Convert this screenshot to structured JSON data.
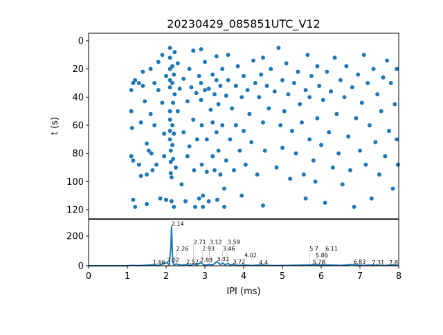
{
  "chart_data": [
    {
      "type": "scatter",
      "title": "20230429_085851UTC_V12",
      "xlabel": "",
      "ylabel": "t (s)",
      "xlim": [
        0,
        8
      ],
      "ylim": [
        126.4,
        -5.4
      ],
      "yticks": [
        "0",
        "20",
        "40",
        "60",
        "80",
        "100",
        "120"
      ],
      "ytick_values": [
        0,
        20,
        40,
        60,
        80,
        100,
        120
      ],
      "color": "#1f77b4",
      "points": [
        [
          1.1,
          35
        ],
        [
          1.15,
          30
        ],
        [
          1.2,
          28
        ],
        [
          1.1,
          50
        ],
        [
          1.12,
          62
        ],
        [
          1.1,
          82
        ],
        [
          1.15,
          85
        ],
        [
          1.15,
          113
        ],
        [
          1.2,
          118
        ],
        [
          1.3,
          88
        ],
        [
          1.35,
          96
        ],
        [
          1.35,
          58
        ],
        [
          1.3,
          30
        ],
        [
          1.4,
          22
        ],
        [
          1.4,
          32
        ],
        [
          1.45,
          43
        ],
        [
          1.5,
          73
        ],
        [
          1.5,
          95
        ],
        [
          1.5,
          116
        ],
        [
          1.55,
          78
        ],
        [
          1.6,
          20
        ],
        [
          1.6,
          52
        ],
        [
          1.62,
          80
        ],
        [
          1.65,
          92
        ],
        [
          1.7,
          30
        ],
        [
          1.7,
          60
        ],
        [
          1.75,
          88
        ],
        [
          1.8,
          15
        ],
        [
          1.8,
          35
        ],
        [
          1.85,
          112
        ],
        [
          1.9,
          10
        ],
        [
          1.9,
          44
        ],
        [
          1.95,
          66
        ],
        [
          1.95,
          82
        ],
        [
          2.0,
          25
        ],
        [
          2.0,
          113
        ],
        [
          2.1,
          5
        ],
        [
          2.1,
          12
        ],
        [
          2.1,
          20
        ],
        [
          2.1,
          28
        ],
        [
          2.1,
          33
        ],
        [
          2.1,
          50
        ],
        [
          2.1,
          56
        ],
        [
          2.1,
          64
        ],
        [
          2.1,
          70
        ],
        [
          2.12,
          78
        ],
        [
          2.12,
          86
        ],
        [
          2.12,
          94
        ],
        [
          2.14,
          97
        ],
        [
          2.14,
          114
        ],
        [
          2.16,
          18
        ],
        [
          2.16,
          30
        ],
        [
          2.16,
          60
        ],
        [
          2.16,
          74
        ],
        [
          2.18,
          44
        ],
        [
          2.18,
          84
        ],
        [
          2.2,
          24
        ],
        [
          2.2,
          66
        ],
        [
          2.2,
          118
        ],
        [
          2.22,
          8
        ],
        [
          2.22,
          38
        ],
        [
          2.25,
          90
        ],
        [
          2.3,
          16
        ],
        [
          2.3,
          50
        ],
        [
          2.35,
          34
        ],
        [
          2.4,
          102
        ],
        [
          2.45,
          27
        ],
        [
          2.45,
          65
        ],
        [
          2.5,
          114
        ],
        [
          2.55,
          43
        ],
        [
          2.55,
          82
        ],
        [
          2.6,
          20
        ],
        [
          2.6,
          75
        ],
        [
          2.65,
          33
        ],
        [
          2.7,
          7
        ],
        [
          2.7,
          56
        ],
        [
          2.72,
          92
        ],
        [
          2.75,
          118
        ],
        [
          2.78,
          37
        ],
        [
          2.8,
          70
        ],
        [
          2.85,
          25
        ],
        [
          2.85,
          112
        ],
        [
          2.9,
          6
        ],
        [
          2.9,
          30
        ],
        [
          2.9,
          42
        ],
        [
          2.92,
          60
        ],
        [
          2.92,
          88
        ],
        [
          2.95,
          110
        ],
        [
          2.95,
          118
        ],
        [
          3.0,
          15
        ],
        [
          3.0,
          35
        ],
        [
          3.05,
          70
        ],
        [
          3.05,
          93
        ],
        [
          3.1,
          34
        ],
        [
          3.1,
          114
        ],
        [
          3.15,
          49
        ],
        [
          3.2,
          24
        ],
        [
          3.2,
          58
        ],
        [
          3.2,
          82
        ],
        [
          3.25,
          38
        ],
        [
          3.25,
          92
        ],
        [
          3.3,
          11
        ],
        [
          3.3,
          28
        ],
        [
          3.3,
          65
        ],
        [
          3.32,
          113
        ],
        [
          3.35,
          45
        ],
        [
          3.35,
          78
        ],
        [
          3.4,
          32
        ],
        [
          3.4,
          95
        ],
        [
          3.45,
          20
        ],
        [
          3.45,
          60
        ],
        [
          3.5,
          105
        ],
        [
          3.5,
          118
        ],
        [
          3.55,
          39
        ],
        [
          3.55,
          85
        ],
        [
          3.6,
          10
        ],
        [
          3.6,
          28
        ],
        [
          3.65,
          70
        ],
        [
          3.7,
          48
        ],
        [
          3.75,
          92
        ],
        [
          3.8,
          32
        ],
        [
          3.8,
          60
        ],
        [
          3.85,
          18
        ],
        [
          3.9,
          78
        ],
        [
          3.95,
          40
        ],
        [
          3.95,
          110
        ],
        [
          4.0,
          25
        ],
        [
          4.0,
          64
        ],
        [
          4.05,
          88
        ],
        [
          4.1,
          35
        ],
        [
          4.15,
          52
        ],
        [
          4.2,
          72
        ],
        [
          4.25,
          14
        ],
        [
          4.3,
          30
        ],
        [
          4.35,
          95
        ],
        [
          4.4,
          40
        ],
        [
          4.45,
          24
        ],
        [
          4.5,
          12
        ],
        [
          4.5,
          58
        ],
        [
          4.5,
          117
        ],
        [
          4.55,
          78
        ],
        [
          4.6,
          32
        ],
        [
          4.65,
          48
        ],
        [
          4.7,
          20
        ],
        [
          4.8,
          36
        ],
        [
          4.85,
          90
        ],
        [
          4.9,
          5
        ],
        [
          4.95,
          60
        ],
        [
          5.0,
          28
        ],
        [
          5.0,
          76
        ],
        [
          5.05,
          50
        ],
        [
          5.1,
          16
        ],
        [
          5.15,
          38
        ],
        [
          5.2,
          98
        ],
        [
          5.25,
          64
        ],
        [
          5.3,
          30
        ],
        [
          5.35,
          80
        ],
        [
          5.4,
          22
        ],
        [
          5.45,
          45
        ],
        [
          5.5,
          58
        ],
        [
          5.55,
          95
        ],
        [
          5.6,
          35
        ],
        [
          5.6,
          112
        ],
        [
          5.65,
          10
        ],
        [
          5.7,
          40
        ],
        [
          5.7,
          70
        ],
        [
          5.75,
          25
        ],
        [
          5.8,
          85
        ],
        [
          5.85,
          100
        ],
        [
          5.9,
          18
        ],
        [
          5.9,
          55
        ],
        [
          5.95,
          32
        ],
        [
          6.0,
          74
        ],
        [
          6.05,
          42
        ],
        [
          6.1,
          115
        ],
        [
          6.15,
          22
        ],
        [
          6.2,
          65
        ],
        [
          6.25,
          36
        ],
        [
          6.3,
          90
        ],
        [
          6.35,
          12
        ],
        [
          6.4,
          52
        ],
        [
          6.45,
          80
        ],
        [
          6.5,
          28
        ],
        [
          6.55,
          102
        ],
        [
          6.6,
          40
        ],
        [
          6.65,
          18
        ],
        [
          6.7,
          68
        ],
        [
          6.75,
          92
        ],
        [
          6.8,
          33
        ],
        [
          6.85,
          118
        ],
        [
          6.9,
          55
        ],
        [
          6.95,
          24
        ],
        [
          7.0,
          78
        ],
        [
          7.05,
          44
        ],
        [
          7.1,
          10
        ],
        [
          7.15,
          88
        ],
        [
          7.2,
          30
        ],
        [
          7.25,
          60
        ],
        [
          7.3,
          112
        ],
        [
          7.35,
          20
        ],
        [
          7.4,
          72
        ],
        [
          7.45,
          38
        ],
        [
          7.5,
          95
        ],
        [
          7.55,
          50
        ],
        [
          7.6,
          26
        ],
        [
          7.65,
          82
        ],
        [
          7.7,
          14
        ],
        [
          7.75,
          64
        ],
        [
          7.8,
          30
        ],
        [
          7.85,
          105
        ],
        [
          7.9,
          45
        ],
        [
          7.95,
          20
        ],
        [
          7.95,
          70
        ],
        [
          7.98,
          88
        ]
      ]
    },
    {
      "type": "line",
      "xlabel": "IPI (ms)",
      "ylabel": "",
      "xlim": [
        0,
        8
      ],
      "ylim": [
        0,
        312
      ],
      "xticks": [
        "0",
        "1",
        "2",
        "3",
        "4",
        "5",
        "6",
        "7",
        "8"
      ],
      "xtick_values": [
        0,
        1,
        2,
        3,
        4,
        5,
        6,
        7,
        8
      ],
      "yticks": [
        "0",
        "200"
      ],
      "ytick_values": [
        0,
        200
      ],
      "color": "#1f77b4",
      "series": [
        [
          0,
          0
        ],
        [
          1,
          0
        ],
        [
          1.1,
          3
        ],
        [
          1.3,
          1
        ],
        [
          1.5,
          4
        ],
        [
          1.66,
          7
        ],
        [
          1.8,
          2
        ],
        [
          2.02,
          22
        ],
        [
          2.08,
          5
        ],
        [
          2.12,
          120
        ],
        [
          2.14,
          265
        ],
        [
          2.17,
          30
        ],
        [
          2.2,
          6
        ],
        [
          2.26,
          12
        ],
        [
          2.4,
          4
        ],
        [
          2.52,
          9
        ],
        [
          2.6,
          3
        ],
        [
          2.71,
          11
        ],
        [
          2.8,
          5
        ],
        [
          2.88,
          22
        ],
        [
          2.93,
          14
        ],
        [
          3.0,
          4
        ],
        [
          3.12,
          10
        ],
        [
          3.2,
          5
        ],
        [
          3.31,
          28
        ],
        [
          3.4,
          8
        ],
        [
          3.46,
          18
        ],
        [
          3.52,
          6
        ],
        [
          3.59,
          16
        ],
        [
          3.65,
          5
        ],
        [
          3.72,
          9
        ],
        [
          3.85,
          3
        ],
        [
          4.02,
          6
        ],
        [
          4.2,
          2
        ],
        [
          4.4,
          5
        ],
        [
          4.8,
          2
        ],
        [
          5.2,
          3
        ],
        [
          5.7,
          6
        ],
        [
          5.78,
          8
        ],
        [
          5.86,
          7
        ],
        [
          6.11,
          6
        ],
        [
          6.5,
          3
        ],
        [
          6.83,
          9
        ],
        [
          7.1,
          3
        ],
        [
          7.31,
          5
        ],
        [
          7.6,
          2
        ],
        [
          7.8,
          5
        ],
        [
          8,
          3
        ]
      ],
      "annotations": [
        {
          "x": 1.66,
          "y": 7,
          "text": "1.66"
        },
        {
          "x": 2.02,
          "y": 22,
          "text": "2.02"
        },
        {
          "x": 2.14,
          "y": 265,
          "text": "2.14"
        },
        {
          "x": 2.26,
          "y": 12,
          "text": "2.26"
        },
        {
          "x": 2.52,
          "y": 9,
          "text": "2.52"
        },
        {
          "x": 2.71,
          "y": 11,
          "text": "2.71"
        },
        {
          "x": 2.88,
          "y": 22,
          "text": "2.88"
        },
        {
          "x": 2.93,
          "y": 14,
          "text": "2.93"
        },
        {
          "x": 3.12,
          "y": 10,
          "text": "3.12"
        },
        {
          "x": 3.31,
          "y": 28,
          "text": "3.31"
        },
        {
          "x": 3.46,
          "y": 18,
          "text": "3.46"
        },
        {
          "x": 3.59,
          "y": 16,
          "text": "3.59"
        },
        {
          "x": 3.72,
          "y": 9,
          "text": "3.72"
        },
        {
          "x": 4.02,
          "y": 6,
          "text": "4.02"
        },
        {
          "x": 4.4,
          "y": 5,
          "text": "4.4"
        },
        {
          "x": 5.7,
          "y": 6,
          "text": "5.7"
        },
        {
          "x": 5.78,
          "y": 8,
          "text": "5.78"
        },
        {
          "x": 5.86,
          "y": 7,
          "text": "5.86"
        },
        {
          "x": 6.11,
          "y": 6,
          "text": "6.11"
        },
        {
          "x": 6.83,
          "y": 9,
          "text": "6.83"
        },
        {
          "x": 7.31,
          "y": 5,
          "text": "7.31"
        },
        {
          "x": 7.8,
          "y": 5,
          "text": "7.8"
        }
      ]
    }
  ]
}
